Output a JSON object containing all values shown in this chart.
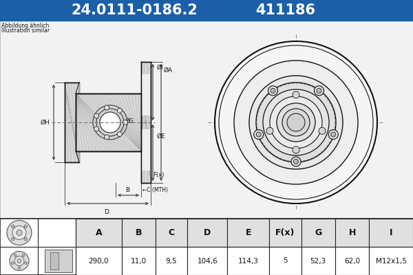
{
  "title_part": "24.0111-0186.2",
  "title_code": "411186",
  "title_bg": "#1a5fa8",
  "title_fg": "#ffffff",
  "note_line1": "Abbildung ähnlich",
  "note_line2": "Illustration similar",
  "table_headers": [
    "A",
    "B",
    "C",
    "D",
    "E",
    "F(x)",
    "G",
    "H",
    "I"
  ],
  "table_values": [
    "290,0",
    "11,0",
    "9,5",
    "104,6",
    "114,3",
    "5",
    "52,3",
    "62,0",
    "M12x1,5"
  ],
  "bg_color": "#f2f2f2",
  "diagram_bg": "#ffffff",
  "table_bg": "#ffffff",
  "table_header_bg": "#e0e0e0",
  "border_color": "#222222",
  "dim_color": "#333333",
  "hatch_color": "#999999",
  "lc": "#111111"
}
